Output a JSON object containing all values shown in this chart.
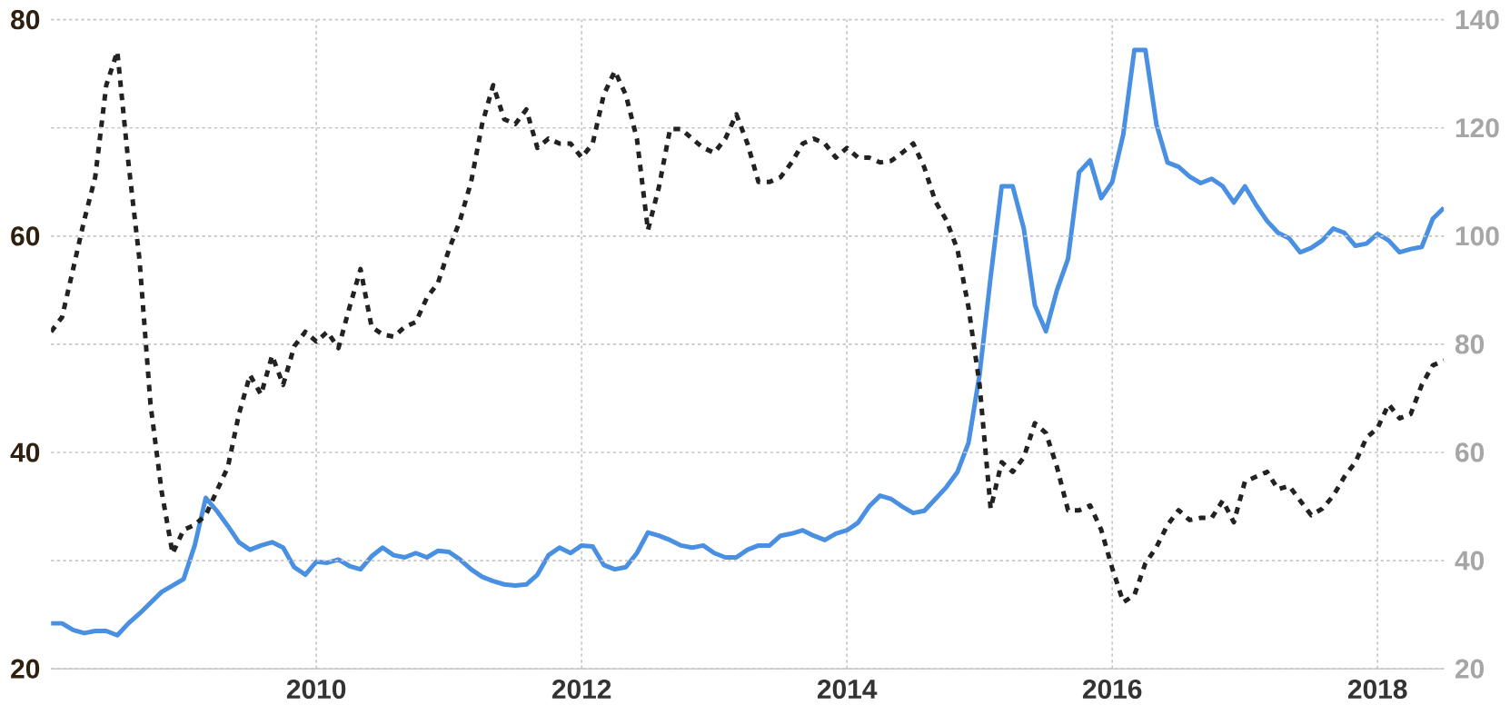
{
  "chart_data": {
    "type": "line",
    "x": [
      "2008-01",
      "2008-02",
      "2008-03",
      "2008-04",
      "2008-05",
      "2008-06",
      "2008-07",
      "2008-08",
      "2008-09",
      "2008-10",
      "2008-11",
      "2008-12",
      "2009-01",
      "2009-02",
      "2009-03",
      "2009-04",
      "2009-05",
      "2009-06",
      "2009-07",
      "2009-08",
      "2009-09",
      "2009-10",
      "2009-11",
      "2009-12",
      "2010-01",
      "2010-02",
      "2010-03",
      "2010-04",
      "2010-05",
      "2010-06",
      "2010-07",
      "2010-08",
      "2010-09",
      "2010-10",
      "2010-11",
      "2010-12",
      "2011-01",
      "2011-02",
      "2011-03",
      "2011-04",
      "2011-05",
      "2011-06",
      "2011-07",
      "2011-08",
      "2011-09",
      "2011-10",
      "2011-11",
      "2011-12",
      "2012-01",
      "2012-02",
      "2012-03",
      "2012-04",
      "2012-05",
      "2012-06",
      "2012-07",
      "2012-08",
      "2012-09",
      "2012-10",
      "2012-11",
      "2012-12",
      "2013-01",
      "2013-02",
      "2013-03",
      "2013-04",
      "2013-05",
      "2013-06",
      "2013-07",
      "2013-08",
      "2013-09",
      "2013-10",
      "2013-11",
      "2013-12",
      "2014-01",
      "2014-02",
      "2014-03",
      "2014-04",
      "2014-05",
      "2014-06",
      "2014-07",
      "2014-08",
      "2014-09",
      "2014-10",
      "2014-11",
      "2014-12",
      "2015-01",
      "2015-02",
      "2015-03",
      "2015-04",
      "2015-05",
      "2015-06",
      "2015-07",
      "2015-08",
      "2015-09",
      "2015-10",
      "2015-11",
      "2015-12",
      "2016-01",
      "2016-02",
      "2016-03",
      "2016-04",
      "2016-05",
      "2016-06",
      "2016-07",
      "2016-08",
      "2016-09",
      "2016-10",
      "2016-11",
      "2016-12",
      "2017-01",
      "2017-02",
      "2017-03",
      "2017-04",
      "2017-05",
      "2017-06",
      "2017-07",
      "2017-08",
      "2017-09",
      "2017-10",
      "2017-11",
      "2017-12",
      "2018-01",
      "2018-02",
      "2018-03",
      "2018-04",
      "2018-05",
      "2018-06",
      "2018-07"
    ],
    "series": [
      {
        "color": "#4a90e2",
        "line_style": "solid",
        "values": [
          24.2,
          24.2,
          23.6,
          23.3,
          23.5,
          23.5,
          23.1,
          24.2,
          25.1,
          26.1,
          27.1,
          27.7,
          28.3,
          31.4,
          35.8,
          34.6,
          33.2,
          31.7,
          31.0,
          31.4,
          31.7,
          31.2,
          29.4,
          28.7,
          29.9,
          29.8,
          30.1,
          29.5,
          29.2,
          30.4,
          31.2,
          30.5,
          30.3,
          30.7,
          30.3,
          30.9,
          30.8,
          30.1,
          29.2,
          28.5,
          28.1,
          27.8,
          27.7,
          27.8,
          28.7,
          30.5,
          31.2,
          30.7,
          31.4,
          31.3,
          29.6,
          29.2,
          29.4,
          30.7,
          32.6,
          32.3,
          31.9,
          31.4,
          31.2,
          31.4,
          30.7,
          30.3,
          30.3,
          31.0,
          31.4,
          31.4,
          32.3,
          32.5,
          32.8,
          32.3,
          31.9,
          32.5,
          32.8,
          33.5,
          35.0,
          36.0,
          35.7,
          35.0,
          34.4,
          34.6,
          35.7,
          36.8,
          38.2,
          40.9,
          47.2,
          56.2,
          64.6,
          64.6,
          60.7,
          53.6,
          51.2,
          55.0,
          57.9,
          65.9,
          67.0,
          63.5,
          65.0,
          69.4,
          77.2,
          77.2,
          70.3,
          66.8,
          66.4,
          65.5,
          64.9,
          65.3,
          64.6,
          63.1,
          64.6,
          62.9,
          61.4,
          60.3,
          59.8,
          58.5,
          58.9,
          59.6,
          60.7,
          60.3,
          59.1,
          59.3,
          60.2,
          59.6,
          58.5,
          58.8,
          59.0,
          61.6,
          62.6
        ]
      },
      {
        "color": "#222222",
        "line_style": "dotted",
        "axis": "y2",
        "values": [
          82.3,
          85.0,
          93.9,
          102.9,
          110.9,
          127.9,
          134.1,
          113.6,
          95.7,
          68.9,
          52.9,
          41.3,
          45.7,
          46.6,
          48.4,
          52.9,
          57.3,
          67.1,
          74.3,
          70.7,
          77.9,
          72.5,
          79.6,
          82.3,
          80.5,
          82.3,
          79.3,
          86.8,
          93.9,
          83.2,
          81.8,
          81.4,
          83.2,
          84.1,
          88.6,
          91.3,
          97.5,
          102.9,
          110.0,
          120.7,
          127.9,
          121.6,
          120.7,
          123.4,
          116.3,
          118.0,
          117.1,
          117.1,
          114.5,
          117.1,
          126.1,
          130.5,
          126.1,
          118.0,
          101.1,
          109.1,
          119.8,
          119.8,
          118.0,
          116.3,
          115.4,
          118.0,
          122.5,
          117.1,
          110.0,
          110.0,
          110.9,
          113.6,
          117.1,
          118.0,
          117.1,
          114.5,
          116.3,
          114.5,
          114.5,
          113.6,
          113.9,
          115.4,
          117.1,
          112.7,
          106.4,
          102.9,
          97.5,
          86.8,
          72.5,
          49.6,
          58.2,
          56.4,
          59.1,
          65.4,
          63.6,
          57.3,
          49.3,
          49.3,
          50.2,
          45.7,
          38.6,
          32.3,
          33.6,
          39.5,
          42.5,
          46.6,
          49.3,
          47.5,
          47.9,
          47.9,
          51.1,
          47.1,
          54.6,
          55.5,
          56.4,
          53.2,
          53.8,
          51.1,
          48.4,
          49.6,
          52.0,
          55.5,
          58.2,
          62.7,
          64.5,
          68.9,
          66.3,
          67.1,
          72.5,
          76.1,
          77.0
        ]
      }
    ],
    "xlim": [
      "2008-01",
      "2018-07"
    ],
    "xticks": [
      "2010",
      "2012",
      "2014",
      "2016",
      "2018"
    ],
    "ylim": [
      20,
      80
    ],
    "yticks": [
      20,
      40,
      60,
      80
    ],
    "y2lim": [
      20,
      140
    ],
    "y2ticks": [
      20,
      40,
      60,
      80,
      100,
      120,
      140
    ],
    "grid": true
  }
}
